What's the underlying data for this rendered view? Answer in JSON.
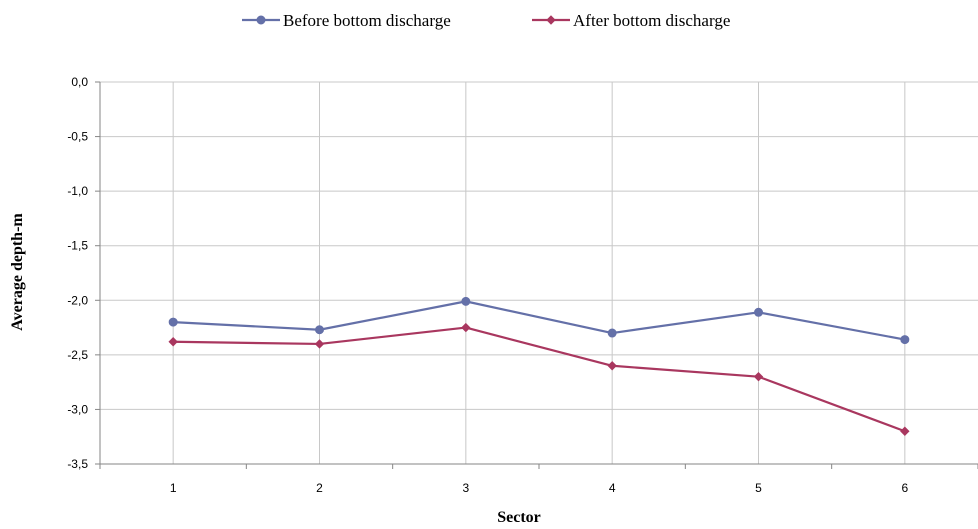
{
  "chart_data": {
    "type": "line",
    "title": "",
    "xlabel": "Sector",
    "ylabel": "Average depth-m",
    "categories": [
      "1",
      "2",
      "3",
      "4",
      "5",
      "6"
    ],
    "ylim": [
      -3.5,
      0.0
    ],
    "yticks": [
      "0,0",
      "-0,5",
      "-1,0",
      "-1,5",
      "-2,0",
      "-2,5",
      "-3,0",
      "-3,5"
    ],
    "grid": true,
    "legend_position": "top",
    "series": [
      {
        "name": "Before bottom discharge",
        "color": "#6470A8",
        "marker": "circle",
        "values": [
          -2.2,
          -2.27,
          -2.01,
          -2.3,
          -2.11,
          -2.36
        ]
      },
      {
        "name": "After bottom discharge",
        "color": "#A9375F",
        "marker": "diamond",
        "values": [
          -2.38,
          -2.4,
          -2.25,
          -2.6,
          -2.7,
          -3.2
        ]
      }
    ]
  }
}
